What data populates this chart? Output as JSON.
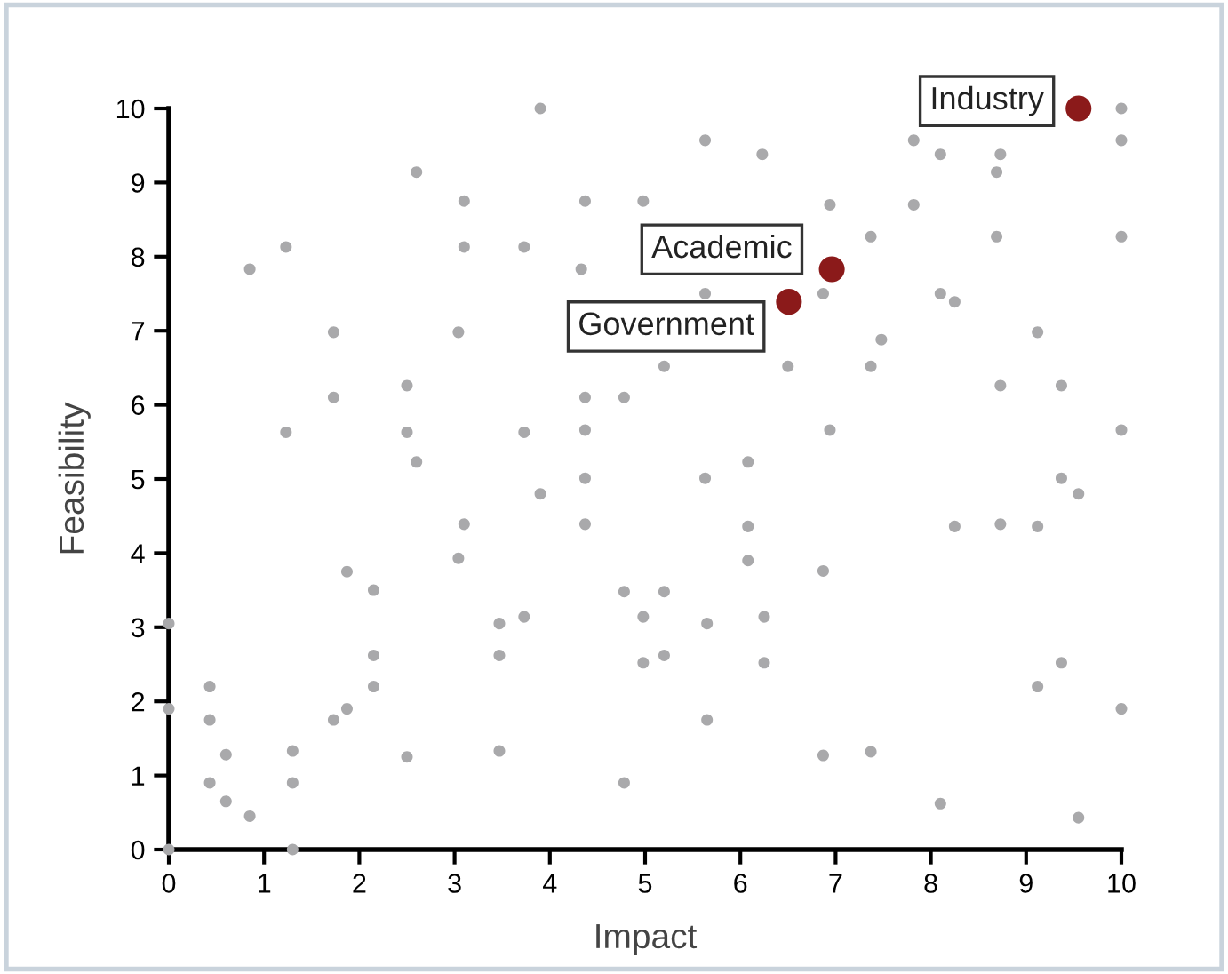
{
  "chart_data": {
    "type": "scatter",
    "xlabel": "Impact",
    "ylabel": "Feasibility",
    "xlim": [
      0,
      10
    ],
    "ylim": [
      0,
      10
    ],
    "xticks": [
      0,
      1,
      2,
      3,
      4,
      5,
      6,
      7,
      8,
      9,
      10
    ],
    "yticks": [
      0,
      1,
      2,
      3,
      4,
      5,
      6,
      7,
      8,
      9,
      10
    ],
    "grid": false,
    "legend": false,
    "marker": "circle",
    "series": [
      {
        "color": "#a9a9ab",
        "x": [
          0,
          0,
          0,
          0.43,
          0.43,
          0.43,
          0.6,
          0.6,
          0.85,
          0.85,
          1.23,
          1.23,
          1.3,
          1.3,
          1.3,
          1.73,
          1.73,
          1.73,
          1.87,
          1.87,
          2.15,
          2.15,
          2.15,
          2.5,
          2.5,
          2.5,
          2.6,
          2.6,
          3.04,
          3.04,
          3.1,
          3.1,
          3.1,
          3.47,
          3.47,
          3.47,
          3.73,
          3.73,
          3.73,
          3.9,
          3.9,
          4.37,
          4.33,
          4.37,
          4.37,
          4.37,
          4.37,
          4.78,
          4.78,
          4.78,
          4.98,
          4.98,
          4.98,
          5.2,
          5.2,
          5.2,
          5.63,
          5.63,
          5.63,
          5.65,
          5.65,
          6.23,
          6.5,
          6.08,
          6.08,
          6.08,
          6.25,
          6.25,
          6.87,
          6.87,
          6.87,
          6.94,
          6.94,
          7.37,
          7.37,
          7.48,
          7.37,
          7.82,
          7.82,
          8.1,
          8.1,
          8.25,
          8.1,
          8.25,
          8.69,
          8.73,
          8.69,
          8.73,
          8.73,
          9.12,
          9.12,
          9.12,
          9.37,
          9.37,
          9.37,
          9.55,
          9.55,
          10,
          10,
          10,
          10,
          10
        ],
        "values": [
          0,
          1.9,
          3.05,
          2.2,
          1.75,
          0.9,
          1.28,
          0.65,
          0.45,
          7.83,
          8.13,
          5.63,
          1.33,
          0.9,
          0,
          6.98,
          6.1,
          1.75,
          1.9,
          3.75,
          3.5,
          2.62,
          2.2,
          6.26,
          5.63,
          1.25,
          9.14,
          5.23,
          6.98,
          3.93,
          8.75,
          8.13,
          4.39,
          3.05,
          2.62,
          1.33,
          8.13,
          5.63,
          3.14,
          10,
          4.8,
          8.75,
          7.83,
          6.1,
          5.66,
          5.01,
          4.39,
          6.1,
          3.48,
          0.9,
          8.75,
          3.14,
          2.52,
          6.52,
          3.48,
          2.62,
          9.57,
          7.5,
          5.01,
          3.05,
          1.75,
          9.38,
          6.52,
          5.23,
          4.36,
          3.9,
          3.14,
          2.52,
          3.76,
          1.27,
          7.5,
          8.7,
          5.66,
          8.27,
          6.52,
          6.88,
          1.32,
          9.57,
          8.7,
          9.38,
          7.5,
          7.39,
          0.62,
          4.36,
          9.14,
          9.38,
          8.27,
          6.26,
          4.39,
          6.98,
          4.36,
          2.2,
          6.26,
          5.01,
          2.52,
          4.8,
          0.43,
          10,
          9.57,
          8.27,
          5.66,
          1.9
        ]
      },
      {
        "color": "#8b1a1a",
        "x": [
          9.55,
          6.96,
          6.51
        ],
        "values": [
          10.0,
          7.83,
          7.39
        ]
      }
    ],
    "annotations": [
      {
        "text": "Industry",
        "x": 9.55,
        "y": 10.0
      },
      {
        "text": "Academic",
        "x": 6.96,
        "y": 7.83
      },
      {
        "text": "Government",
        "x": 6.51,
        "y": 7.39
      }
    ]
  }
}
